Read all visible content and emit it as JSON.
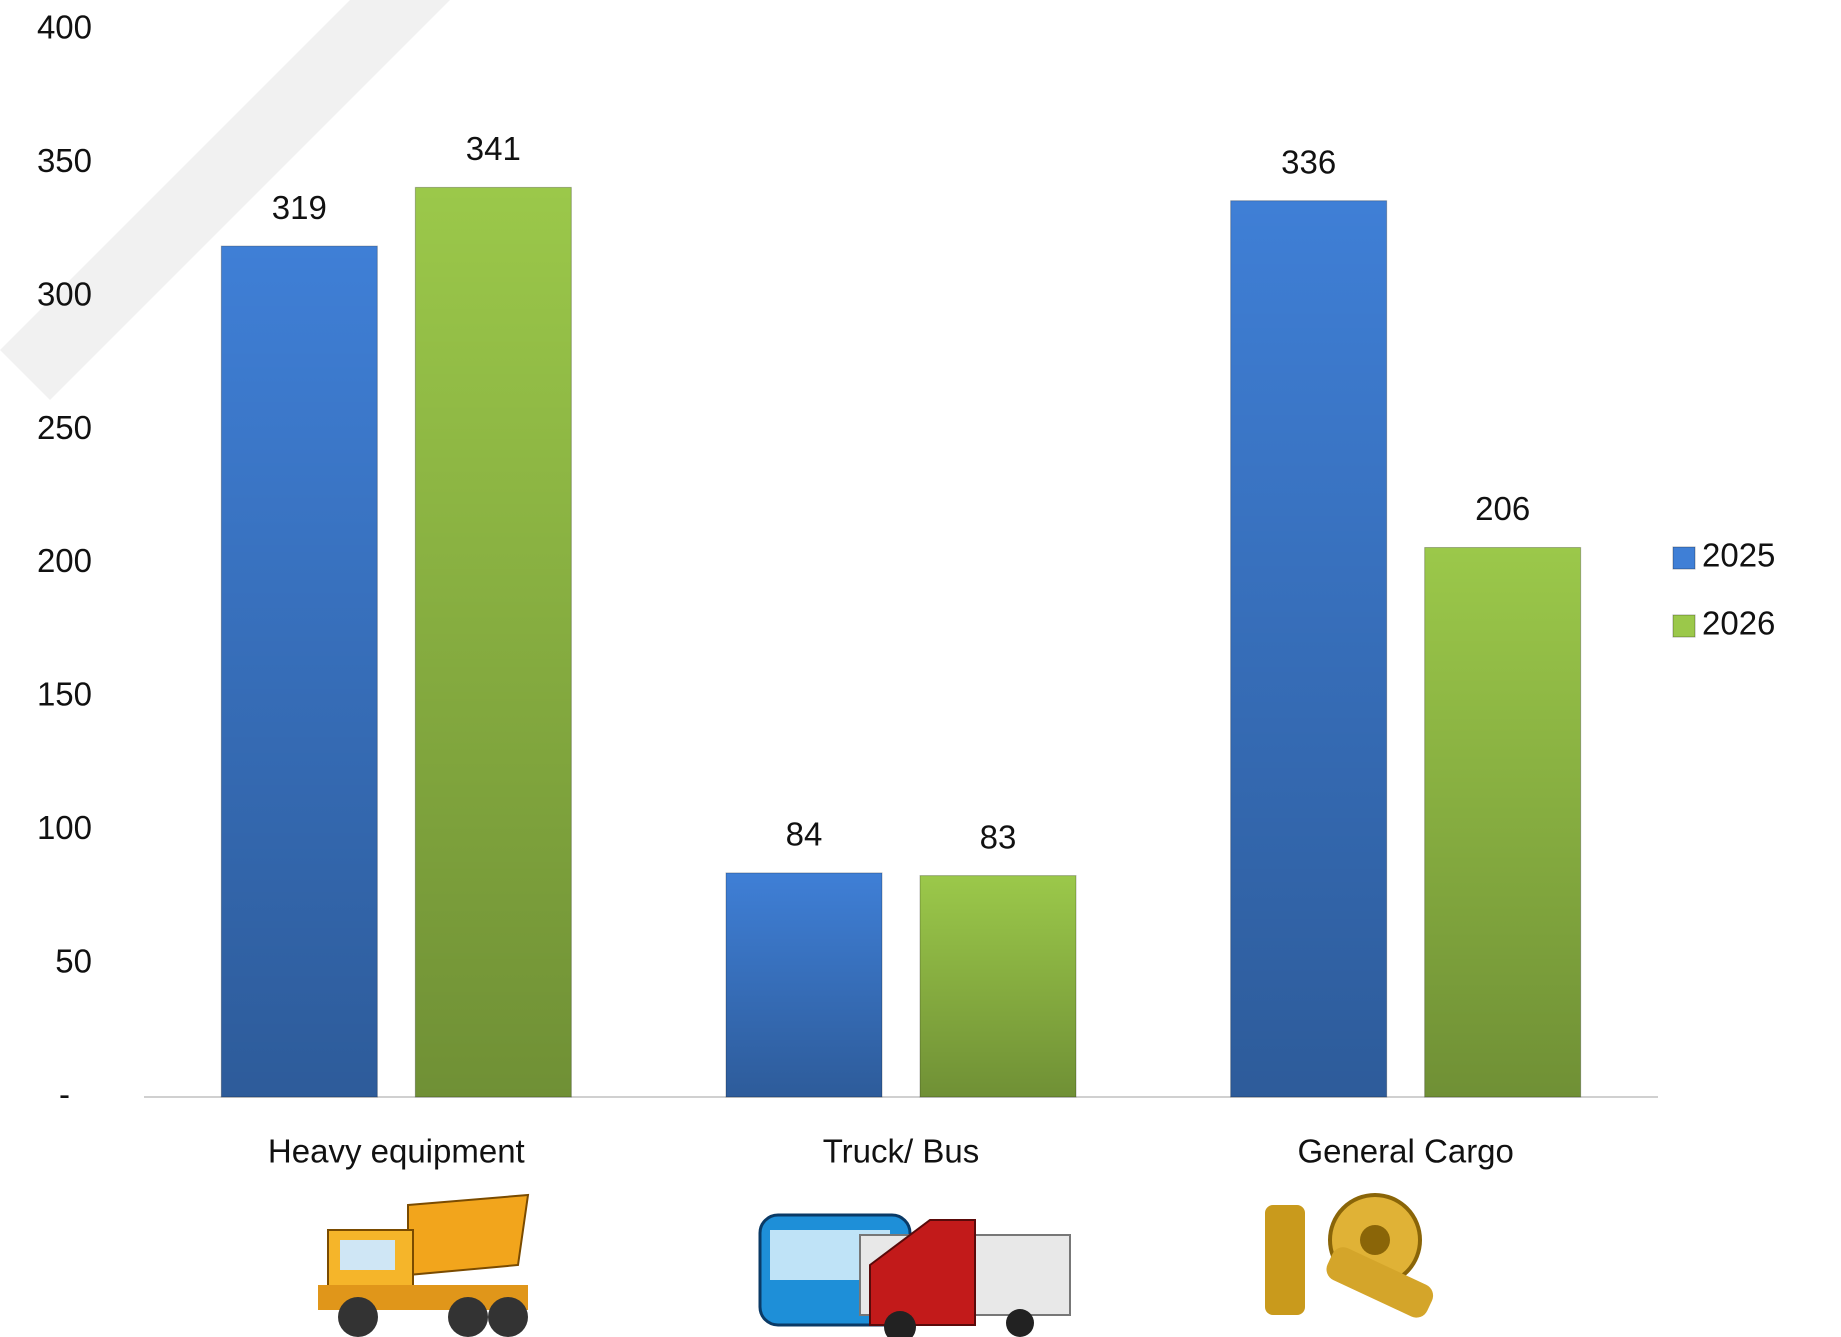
{
  "chart_data": {
    "type": "bar",
    "categories": [
      "Heavy equipment",
      "Truck/ Bus",
      "General Cargo"
    ],
    "series": [
      {
        "name": "2025",
        "color": "#3f7fd6",
        "values": [
          319,
          84,
          336
        ]
      },
      {
        "name": "2026",
        "color": "#9bc84a",
        "values": [
          341,
          83,
          206
        ]
      }
    ],
    "ylim": [
      0,
      400
    ],
    "yticks": [
      {
        "value": 0,
        "label": "-"
      },
      50,
      100,
      150,
      200,
      250,
      300,
      350,
      400
    ],
    "legend": "right"
  }
}
